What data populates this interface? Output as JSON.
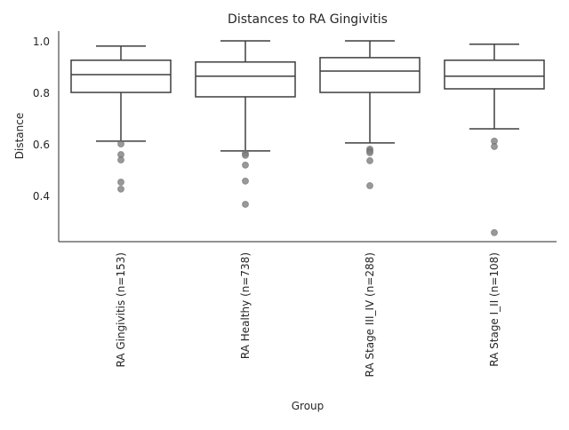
{
  "chart_data": {
    "type": "box",
    "title": "Distances to RA Gingivitis",
    "xlabel": "Group",
    "ylabel": "Distance",
    "ylim": [
      0.224,
      1.041
    ],
    "yticks": [
      0.4,
      0.6,
      0.8,
      1.0
    ],
    "ytick_labels": [
      "0.4",
      "0.6",
      "0.8",
      "1.0"
    ],
    "grid": false,
    "categories": [
      "RA Gingivitis (n=153)",
      "RA Healthy (n=738)",
      "RA Stage III_IV (n=288)",
      "RA Stage I_II (n=108)"
    ],
    "boxes": [
      {
        "whislo": 0.614,
        "q1": 0.803,
        "med": 0.872,
        "q3": 0.928,
        "whishi": 0.983,
        "fliers": [
          0.603,
          0.562,
          0.541,
          0.455,
          0.428
        ]
      },
      {
        "whislo": 0.576,
        "q1": 0.786,
        "med": 0.866,
        "q3": 0.921,
        "whishi": 1.003,
        "fliers": [
          0.566,
          0.559,
          0.521,
          0.459,
          0.369
        ]
      },
      {
        "whislo": 0.607,
        "q1": 0.803,
        "med": 0.886,
        "q3": 0.938,
        "whishi": 1.003,
        "fliers": [
          0.583,
          0.576,
          0.569,
          0.538,
          0.441
        ]
      },
      {
        "whislo": 0.662,
        "q1": 0.817,
        "med": 0.866,
        "q3": 0.928,
        "whishi": 0.99,
        "fliers": [
          0.614,
          0.593,
          0.259
        ]
      }
    ],
    "colors": {
      "box_edge": "#3f3f3f",
      "flier": "#808080",
      "axis": "#262626"
    }
  }
}
